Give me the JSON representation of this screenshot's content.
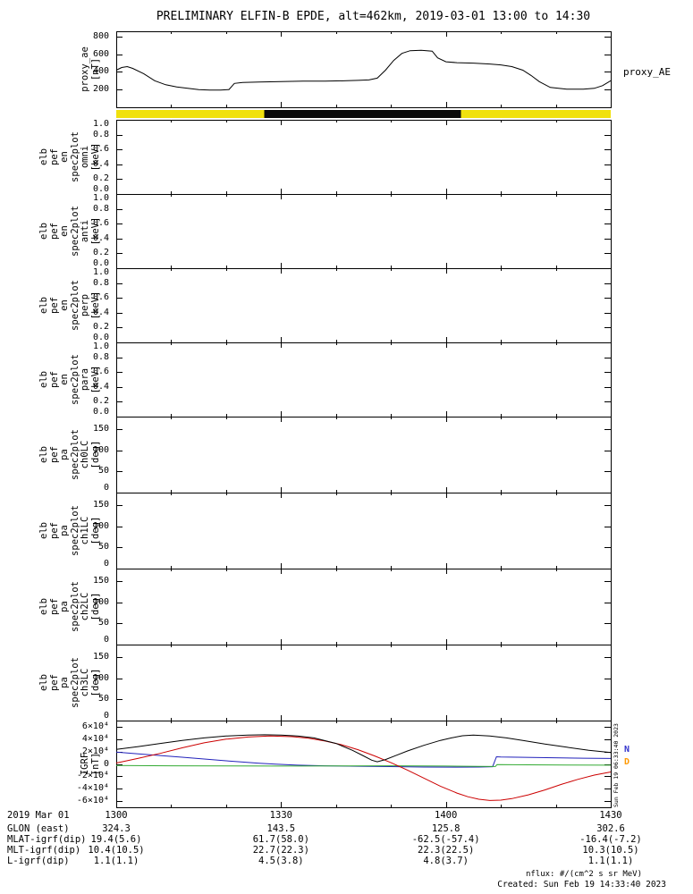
{
  "title": "PRELIMINARY ELFIN-B EPDE, alt=462km, 2019-03-01 13:00 to 14:30",
  "right_label": "proxy_AE",
  "watermark_vertical": "Sun Feb 19 06:33:40 2023",
  "footer": {
    "nflux": "nflux: #/(cm^2 s sr MeV)",
    "created": "Created: Sun Feb 19 14:33:40 2023"
  },
  "x_axis": {
    "date_label": "2019 Mar 01",
    "tick_labels": [
      "1300",
      "1330",
      "1400",
      "1430"
    ],
    "tick_minutes": [
      0,
      30,
      60,
      90
    ],
    "minor_step_minutes": 10,
    "range_minutes": [
      0,
      90
    ]
  },
  "annotation_rows": [
    {
      "label": "GLON (east)",
      "values": [
        "324.3",
        "143.5",
        "125.8",
        "302.6"
      ]
    },
    {
      "label": "MLAT-igrf(dip)",
      "values": [
        "19.4(5.6)",
        "61.7(58.0)",
        "-62.5(-57.4)",
        "-16.4(-7.2)"
      ]
    },
    {
      "label": "MLT-igrf(dip)",
      "values": [
        "10.4(10.5)",
        "22.7(22.3)",
        "22.3(22.5)",
        "10.3(10.5)"
      ]
    },
    {
      "label": "L-igrf(dip)",
      "values": [
        "1.1(1.1)",
        "4.5(3.8)",
        "4.8(3.7)",
        "1.1(1.1)"
      ]
    }
  ],
  "legend_right": [
    {
      "text": "N",
      "color": "#3333cc"
    },
    {
      "text": "D",
      "color": "#ff9900"
    }
  ],
  "bar": {
    "color": "#f0e10e",
    "segments": [
      {
        "start": 26.9,
        "end": 62.7,
        "color": "#0a0a0a"
      }
    ]
  },
  "chart_data": [
    {
      "id": "proxy_ae",
      "type": "line",
      "ylabel_lines": [
        "proxy_ae",
        "[nT]"
      ],
      "ylim": [
        0,
        860
      ],
      "ytick_values": [
        200,
        400,
        600,
        800
      ],
      "ytick_labels": [
        "200",
        "400",
        "600",
        "800"
      ],
      "series": [
        {
          "name": "proxy_AE",
          "color": "#000000",
          "x": [
            0,
            1,
            2,
            3,
            5,
            7,
            9,
            11,
            13,
            15,
            17,
            19,
            20.5,
            21.5,
            23,
            26,
            30,
            34,
            38,
            42,
            44,
            46,
            47.5,
            49,
            50.5,
            52,
            53.5,
            55.5,
            57.5,
            58.5,
            60,
            62,
            65,
            68,
            70,
            72,
            74,
            75.5,
            77,
            79,
            82,
            85,
            87,
            88.5,
            90
          ],
          "y": [
            420,
            450,
            460,
            440,
            380,
            300,
            255,
            230,
            215,
            200,
            195,
            195,
            200,
            270,
            280,
            285,
            290,
            295,
            295,
            300,
            305,
            310,
            330,
            420,
            530,
            610,
            640,
            645,
            635,
            560,
            515,
            505,
            500,
            490,
            480,
            460,
            420,
            360,
            290,
            225,
            205,
            205,
            215,
            245,
            300
          ]
        }
      ]
    },
    {
      "id": "elb_pef_en_spec2plot_omni",
      "type": "line",
      "ylabel_lines": [
        "elb",
        "pef",
        "en",
        "spec2plot",
        "omni",
        "[keV]"
      ],
      "ylim": [
        0,
        1
      ],
      "ytick_values": [
        0,
        0.2,
        0.4,
        0.6,
        0.8,
        1
      ],
      "ytick_labels": [
        "0.0",
        "0.2",
        "0.4",
        "0.6",
        "0.8",
        "1.0"
      ],
      "series": []
    },
    {
      "id": "elb_pef_en_spec2plot_anti",
      "type": "line",
      "ylabel_lines": [
        "elb",
        "pef",
        "en",
        "spec2plot",
        "anti",
        "[keV]"
      ],
      "ylim": [
        0,
        1
      ],
      "ytick_values": [
        0,
        0.2,
        0.4,
        0.6,
        0.8,
        1
      ],
      "ytick_labels": [
        "0.0",
        "0.2",
        "0.4",
        "0.6",
        "0.8",
        "1.0"
      ],
      "series": []
    },
    {
      "id": "elb_pef_en_spec2plot_perp",
      "type": "line",
      "ylabel_lines": [
        "elb",
        "pef",
        "en",
        "spec2plot",
        "perp",
        "[keV]"
      ],
      "ylim": [
        0,
        1
      ],
      "ytick_values": [
        0,
        0.2,
        0.4,
        0.6,
        0.8,
        1
      ],
      "ytick_labels": [
        "0.0",
        "0.2",
        "0.4",
        "0.6",
        "0.8",
        "1.0"
      ],
      "series": []
    },
    {
      "id": "elb_pef_en_spec2plot_para",
      "type": "line",
      "ylabel_lines": [
        "elb",
        "pef",
        "en",
        "spec2plot",
        "para",
        "[keV]"
      ],
      "ylim": [
        0,
        1
      ],
      "ytick_values": [
        0,
        0.2,
        0.4,
        0.6,
        0.8,
        1
      ],
      "ytick_labels": [
        "0.0",
        "0.2",
        "0.4",
        "0.6",
        "0.8",
        "1.0"
      ],
      "series": []
    },
    {
      "id": "elb_pef_pa_spec2plot_ch0LC",
      "type": "line",
      "ylabel_lines": [
        "elb",
        "pef",
        "pa",
        "spec2plot",
        "ch0LC",
        "[deg]"
      ],
      "ylim": [
        0,
        180
      ],
      "ytick_values": [
        0,
        50,
        100,
        150
      ],
      "ytick_labels": [
        "0",
        "50",
        "100",
        "150"
      ],
      "series": []
    },
    {
      "id": "elb_pef_pa_spec2plot_ch1LC",
      "type": "line",
      "ylabel_lines": [
        "elb",
        "pef",
        "pa",
        "spec2plot",
        "ch1LC",
        "[deg]"
      ],
      "ylim": [
        0,
        180
      ],
      "ytick_values": [
        0,
        50,
        100,
        150
      ],
      "ytick_labels": [
        "0",
        "50",
        "100",
        "150"
      ],
      "series": []
    },
    {
      "id": "elb_pef_pa_spec2plot_ch2LC",
      "type": "line",
      "ylabel_lines": [
        "elb",
        "pef",
        "pa",
        "spec2plot",
        "ch2LC",
        "[deg]"
      ],
      "ylim": [
        0,
        180
      ],
      "ytick_values": [
        0,
        50,
        100,
        150
      ],
      "ytick_labels": [
        "0",
        "50",
        "100",
        "150"
      ],
      "series": []
    },
    {
      "id": "elb_pef_pa_spec2plot_ch3LC",
      "type": "line",
      "ylabel_lines": [
        "elb",
        "pef",
        "pa",
        "spec2plot",
        "ch3LC",
        "[deg]"
      ],
      "ylim": [
        0,
        180
      ],
      "ytick_values": [
        0,
        50,
        100,
        150
      ],
      "ytick_labels": [
        "0",
        "50",
        "100",
        "150"
      ],
      "series": []
    },
    {
      "id": "igrf",
      "type": "line",
      "ylabel_lines": [
        "IGRF",
        "[nT]"
      ],
      "ylim": [
        -70000,
        70000
      ],
      "ytick_values": [
        -60000,
        -40000,
        -20000,
        0,
        20000,
        40000,
        60000
      ],
      "ytick_labels": [
        "-6×10⁴",
        "-4×10⁴",
        "-2×10⁴",
        "0",
        "2×10⁴",
        "4×10⁴",
        "6×10⁴"
      ],
      "series": [
        {
          "name": "line-blue",
          "color": "#2222bb",
          "x": [
            0,
            4,
            8,
            12,
            16,
            20,
            23,
            26,
            29,
            33,
            38,
            44,
            50,
            56,
            62,
            66,
            68.5,
            69.2,
            70,
            73,
            77,
            81,
            85,
            90
          ],
          "y": [
            19000,
            16200,
            13500,
            10800,
            8000,
            5000,
            3000,
            1000,
            -500,
            -2000,
            -3000,
            -3800,
            -4400,
            -5000,
            -5200,
            -5000,
            -4500,
            11500,
            11200,
            10800,
            10200,
            9700,
            9200,
            8800
          ]
        },
        {
          "name": "line-green",
          "color": "#33aa33",
          "x": [
            0,
            10,
            20,
            30,
            40,
            50,
            60,
            66,
            69,
            69.3,
            75,
            82,
            90
          ],
          "y": [
            -2500,
            -3000,
            -3300,
            -3500,
            -3200,
            -3000,
            -3500,
            -4000,
            -4200,
            -1200,
            -1400,
            -1700,
            -2000
          ]
        },
        {
          "name": "line-red",
          "color": "#cc0000",
          "x": [
            0,
            4,
            8,
            12,
            16,
            20,
            24,
            28,
            32,
            35,
            38,
            41,
            44,
            47,
            50,
            53,
            56,
            59,
            62,
            64,
            66,
            68,
            70,
            72,
            75,
            78,
            81,
            84,
            87,
            90
          ],
          "y": [
            1500,
            9000,
            17000,
            26000,
            34000,
            40000,
            43500,
            45000,
            44000,
            41500,
            37000,
            31000,
            23000,
            13000,
            2000,
            -10000,
            -23000,
            -36000,
            -47000,
            -53000,
            -57000,
            -59000,
            -58500,
            -56000,
            -50000,
            -42000,
            -33000,
            -25000,
            -18000,
            -13000
          ]
        },
        {
          "name": "line-black",
          "color": "#000000",
          "x": [
            0,
            4,
            8,
            12,
            16,
            20,
            24,
            27,
            30,
            33,
            36,
            40,
            43,
            45,
            46.5,
            47.5,
            49,
            51,
            53,
            56,
            59,
            61,
            63,
            65,
            68,
            71,
            74,
            78,
            82,
            86,
            90
          ],
          "y": [
            23500,
            28000,
            33000,
            38000,
            42000,
            45000,
            46500,
            47000,
            46500,
            45000,
            42000,
            33000,
            22000,
            13000,
            6000,
            3500,
            7000,
            14000,
            21000,
            30000,
            38000,
            42000,
            45500,
            46500,
            45000,
            42000,
            38000,
            32000,
            27000,
            22000,
            18500
          ]
        }
      ]
    }
  ]
}
